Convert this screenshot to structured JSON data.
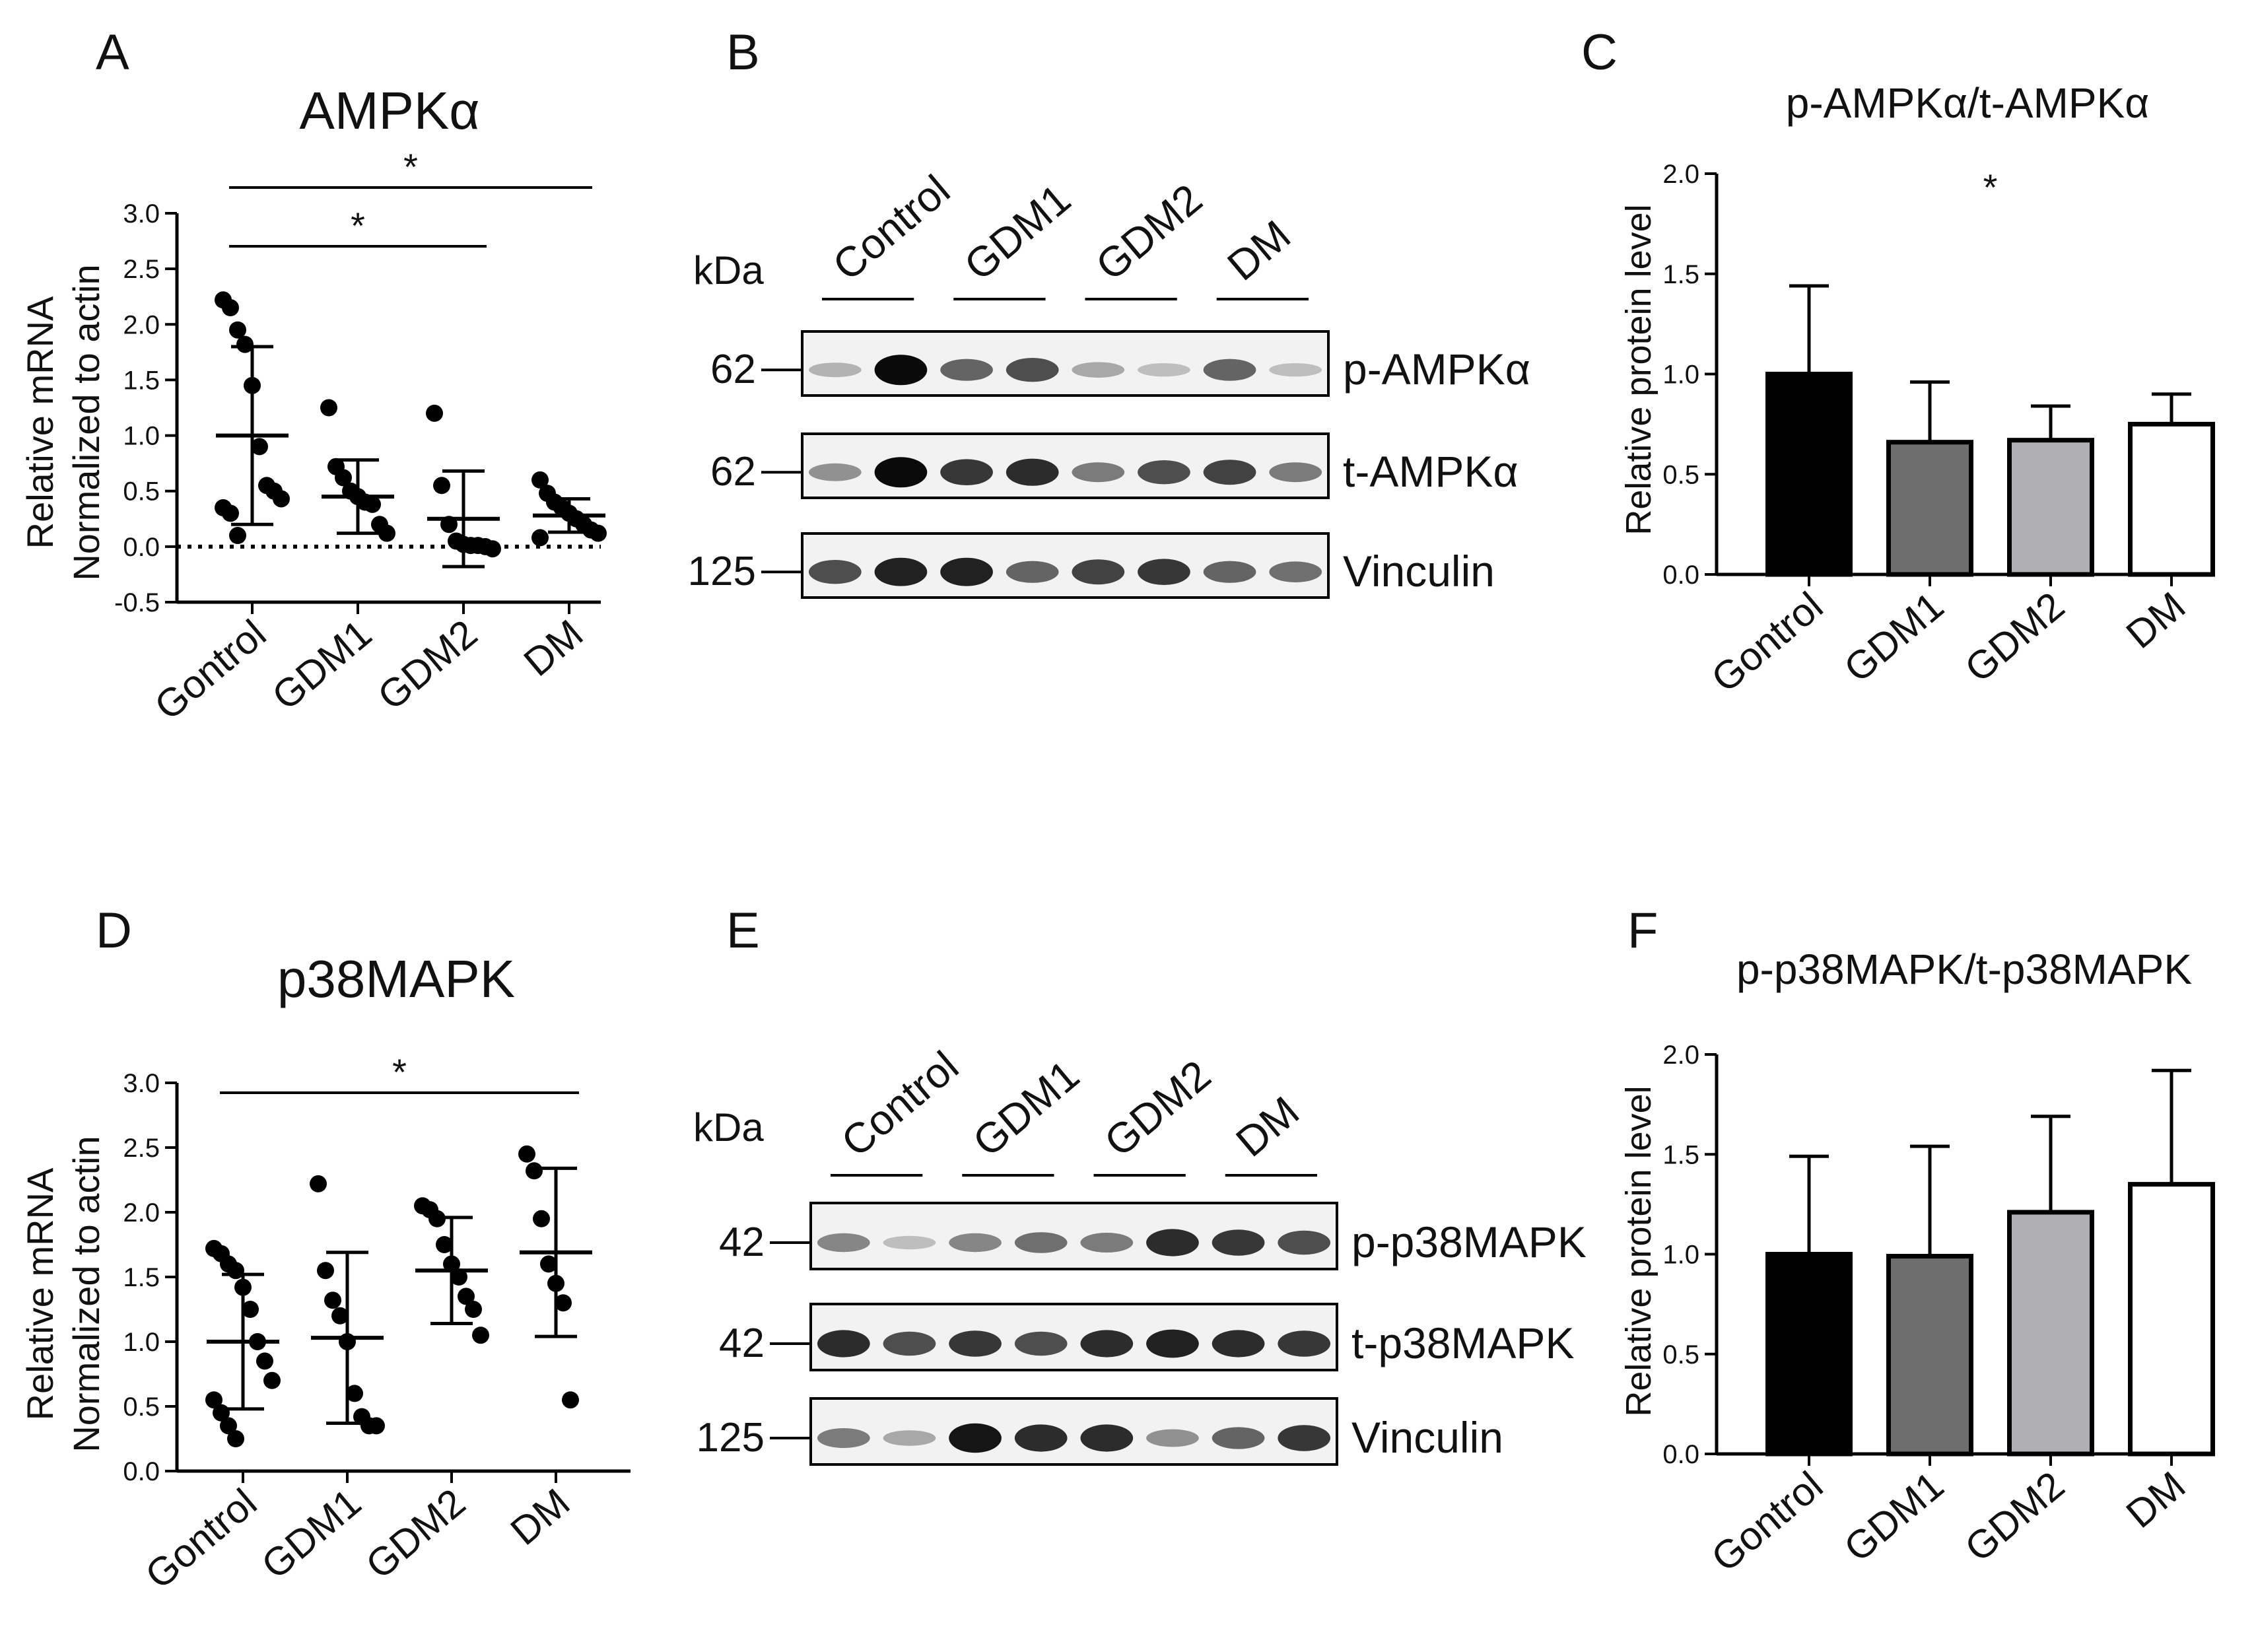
{
  "panels": [
    {
      "letter": "A",
      "title": "AMPKα",
      "ylabel1": "Relative mRNA",
      "ylabel2": "Normalized to actin"
    },
    {
      "letter": "B"
    },
    {
      "letter": "C",
      "title": "p-AMPKα/t-AMPKα",
      "ylabel": "Relative protein level"
    },
    {
      "letter": "D",
      "title": "p38MAPK",
      "ylabel1": "Relative mRNA",
      "ylabel2": "Normalized to actin"
    },
    {
      "letter": "E"
    },
    {
      "letter": "F",
      "title": "p-p38MAPK/t-p38MAPK",
      "ylabel": "Relative protein level"
    }
  ],
  "blots": [
    {
      "kda_label": "kDa",
      "groups": [
        "Control",
        "GDM1",
        "GDM2",
        "DM"
      ],
      "rows": [
        {
          "marker": "62",
          "label": "p-AMPKα",
          "bands": [
            0.25,
            1.0,
            0.6,
            0.7,
            0.3,
            0.2,
            0.6,
            0.2
          ]
        },
        {
          "marker": "62",
          "label": "t-AMPKα",
          "bands": [
            0.4,
            1.0,
            0.8,
            0.85,
            0.5,
            0.7,
            0.75,
            0.5
          ]
        },
        {
          "marker": "125",
          "label": "Vinculin",
          "bands": [
            0.7,
            0.9,
            0.9,
            0.6,
            0.75,
            0.8,
            0.6,
            0.55
          ]
        }
      ]
    },
    {
      "kda_label": "kDa",
      "groups": [
        "Control",
        "GDM1",
        "GDM2",
        "DM"
      ],
      "rows": [
        {
          "marker": "42",
          "label": "p-p38MAPK",
          "bands": [
            0.45,
            0.2,
            0.45,
            0.55,
            0.5,
            0.85,
            0.8,
            0.7
          ]
        },
        {
          "marker": "42",
          "label": "t-p38MAPK",
          "bands": [
            0.85,
            0.7,
            0.8,
            0.7,
            0.85,
            0.9,
            0.85,
            0.8
          ]
        },
        {
          "marker": "125",
          "label": "Vinculin",
          "bands": [
            0.5,
            0.3,
            0.95,
            0.85,
            0.85,
            0.4,
            0.6,
            0.8
          ]
        }
      ]
    }
  ],
  "chart_data": [
    {
      "panel": "A",
      "type": "scatter",
      "title": "AMPKα",
      "ylabel": "Relative mRNA Normalized to actin",
      "categories": [
        "Gontrol",
        "GDM1",
        "GDM2",
        "DM"
      ],
      "ylim": [
        -0.5,
        3.0
      ],
      "yticks": [
        "-0.5",
        "0.0",
        "0.5",
        "1.0",
        "1.5",
        "2.0",
        "2.5",
        "3.0"
      ],
      "baseline_dotted": 0,
      "points": [
        [
          2.22,
          2.15,
          1.95,
          1.82,
          1.45,
          0.9,
          0.55,
          0.5,
          0.43,
          0.35,
          0.3,
          0.1
        ],
        [
          1.25,
          0.72,
          0.62,
          0.5,
          0.45,
          0.4,
          0.38,
          0.2,
          0.12
        ],
        [
          1.2,
          0.55,
          0.2,
          0.05,
          0.02,
          0.01,
          0.01,
          0.0,
          -0.02
        ],
        [
          0.6,
          0.48,
          0.4,
          0.35,
          0.3,
          0.25,
          0.2,
          0.15,
          0.12,
          0.08
        ]
      ],
      "mean": [
        1.0,
        0.45,
        0.25,
        0.28
      ],
      "sd": [
        0.8,
        0.33,
        0.43,
        0.15
      ],
      "significance": [
        {
          "from": 0,
          "to": 2,
          "label": "*"
        },
        {
          "from": 0,
          "to": 3,
          "label": "*"
        }
      ]
    },
    {
      "panel": "C",
      "type": "bar",
      "title": "p-AMPKα/t-AMPKα",
      "ylabel": "Relative protein level",
      "categories": [
        "Gontrol",
        "GDM1",
        "GDM2",
        "DM"
      ],
      "values": [
        1.0,
        0.66,
        0.67,
        0.75
      ],
      "errors": [
        0.44,
        0.3,
        0.17,
        0.15
      ],
      "bar_colors": [
        "#000000",
        "#6e6e6e",
        "#b0b0b4",
        "#ffffff"
      ],
      "ylim": [
        0,
        2.0
      ],
      "yticks": [
        "0.0",
        "0.5",
        "1.0",
        "1.5",
        "2.0"
      ],
      "annotation": "*"
    },
    {
      "panel": "D",
      "type": "scatter",
      "title": "p38MAPK",
      "ylabel": "Relative mRNA Normalized to actin",
      "categories": [
        "Gontrol",
        "GDM1",
        "GDM2",
        "DM"
      ],
      "ylim": [
        0,
        3.0
      ],
      "yticks": [
        "0.0",
        "0.5",
        "1.0",
        "1.5",
        "2.0",
        "2.5",
        "3.0"
      ],
      "points": [
        [
          1.72,
          1.68,
          1.6,
          1.55,
          1.42,
          1.25,
          1.0,
          0.85,
          0.7,
          0.55,
          0.45,
          0.35,
          0.25
        ],
        [
          2.22,
          1.55,
          1.32,
          1.2,
          1.0,
          0.6,
          0.42,
          0.35,
          0.35
        ],
        [
          2.05,
          2.02,
          1.95,
          1.75,
          1.6,
          1.5,
          1.35,
          1.25,
          1.05
        ],
        [
          2.45,
          2.32,
          1.95,
          1.6,
          1.45,
          1.3,
          0.55
        ]
      ],
      "mean": [
        1.0,
        1.03,
        1.55,
        1.69
      ],
      "sd": [
        0.52,
        0.66,
        0.41,
        0.65
      ],
      "significance": [
        {
          "from": 0,
          "to": 3,
          "label": "*"
        }
      ]
    },
    {
      "panel": "F",
      "type": "bar",
      "title": "p-p38MAPK/t-p38MAPK",
      "ylabel": "Relative protein level",
      "categories": [
        "Gontrol",
        "GDM1",
        "GDM2",
        "DM"
      ],
      "values": [
        1.0,
        0.99,
        1.21,
        1.35
      ],
      "errors": [
        0.49,
        0.55,
        0.48,
        0.57
      ],
      "bar_colors": [
        "#000000",
        "#6e6e6e",
        "#b0b0b4",
        "#ffffff"
      ],
      "ylim": [
        0,
        2.0
      ],
      "yticks": [
        "0.0",
        "0.5",
        "1.0",
        "1.5",
        "2.0"
      ]
    }
  ]
}
